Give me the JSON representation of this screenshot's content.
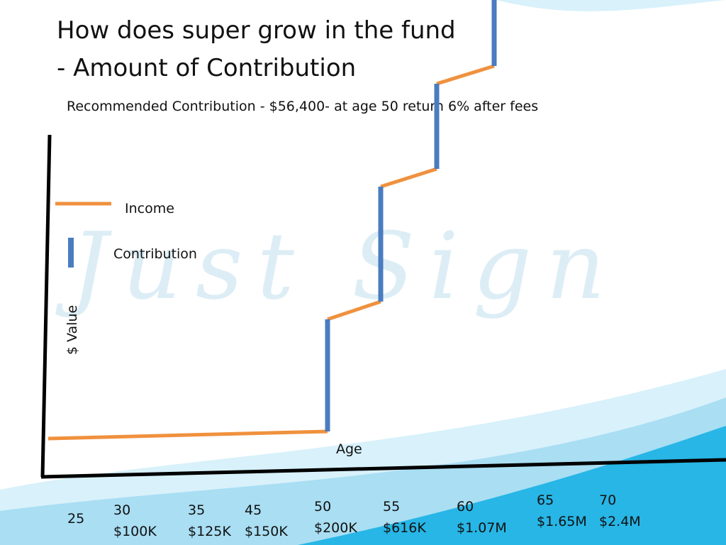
{
  "title": [
    "How does super grow in the fund",
    "- Amount of Contribution"
  ],
  "subtitle": "Recommended Contribution  - $56,400-  at age 50 return 6% after fees",
  "watermark": "Just Sign",
  "legend": [
    {
      "label": "Income"
    },
    {
      "label": "Contribution"
    }
  ],
  "y_axis_label": "$ Value",
  "x_axis_label": "Age",
  "milestones": [
    {
      "age": "25"
    },
    {
      "age": "30",
      "amount": "$100K"
    },
    {
      "age": "35",
      "amount": "$125K"
    },
    {
      "age": "45",
      "amount": "$150K"
    },
    {
      "age": "50",
      "amount": "$200K"
    },
    {
      "age": "55",
      "amount": "$616K"
    },
    {
      "age": "60",
      "amount": "$1.07M"
    },
    {
      "age": "65",
      "amount": "$1.65M"
    },
    {
      "age": "70",
      "amount": "$2.4M"
    }
  ]
}
